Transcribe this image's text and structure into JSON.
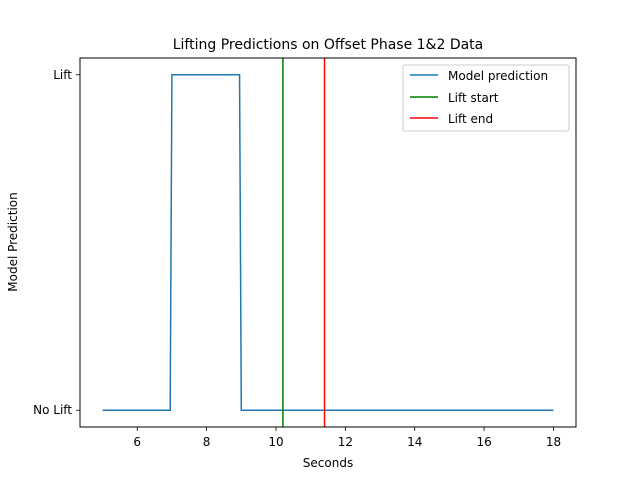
{
  "chart_data": {
    "type": "line",
    "title": "Lifting Predictions on Offset Phase 1&2 Data",
    "xlabel": "Seconds",
    "ylabel": "Model Prediction",
    "xlim": [
      4.35,
      18.65
    ],
    "ylim": [
      -0.05,
      1.05
    ],
    "x_ticks": [
      6,
      8,
      10,
      12,
      14,
      16,
      18
    ],
    "y_ticks": [
      {
        "value": 0,
        "label": "No Lift"
      },
      {
        "value": 1,
        "label": "Lift"
      }
    ],
    "grid": false,
    "legend_position": "top-right",
    "series": [
      {
        "name": "Model prediction",
        "color": "#1f77b4",
        "points": [
          [
            5.0,
            0
          ],
          [
            6.95,
            0
          ],
          [
            7.0,
            1
          ],
          [
            8.95,
            1
          ],
          [
            9.0,
            0
          ],
          [
            18.0,
            0
          ]
        ]
      }
    ],
    "vlines": [
      {
        "name": "Lift start",
        "x": 10.2,
        "color": "#008000"
      },
      {
        "name": "Lift end",
        "x": 11.4,
        "color": "#ff0000"
      }
    ]
  }
}
